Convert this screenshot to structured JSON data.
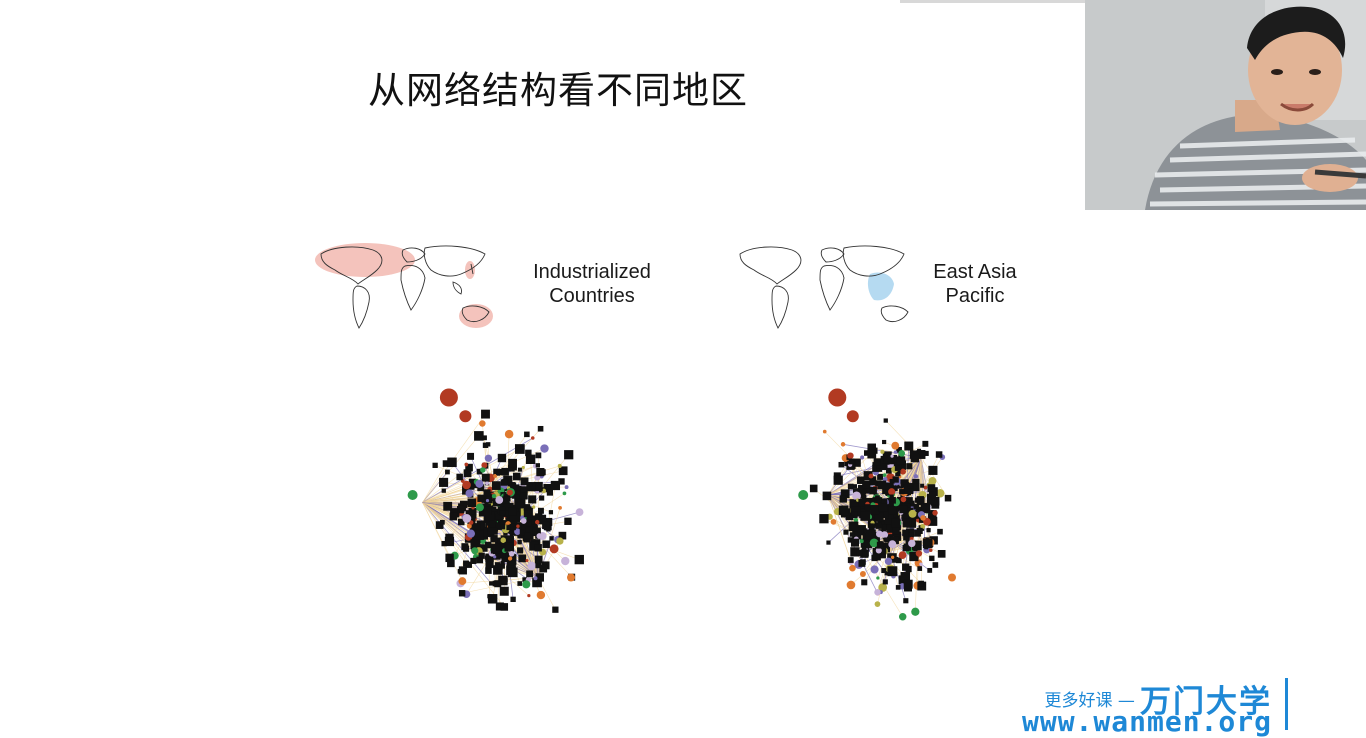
{
  "slide": {
    "title": "从网络结构看不同地区"
  },
  "regions": [
    {
      "line1": "Industrialized",
      "line2": "Countries",
      "highlight_color": "#f2b8b0"
    },
    {
      "line1": "East Asia",
      "line2": "Pacific",
      "highlight_color": "#a8d4ee"
    }
  ],
  "network_colors": {
    "node_black": "#111111",
    "edge_yellow": "#f1d59a",
    "edge_purple": "#7a6fb8",
    "accent_red": "#b23a22",
    "accent_green": "#2e9a4a",
    "accent_orange": "#e07a2f",
    "accent_olive": "#b8b24a",
    "accent_lilac": "#c7b3d9"
  },
  "watermark": {
    "slogan": "更多好课 —",
    "brand": "万门大学",
    "url": "www.wanmen.org",
    "color": "#1e88d6"
  }
}
